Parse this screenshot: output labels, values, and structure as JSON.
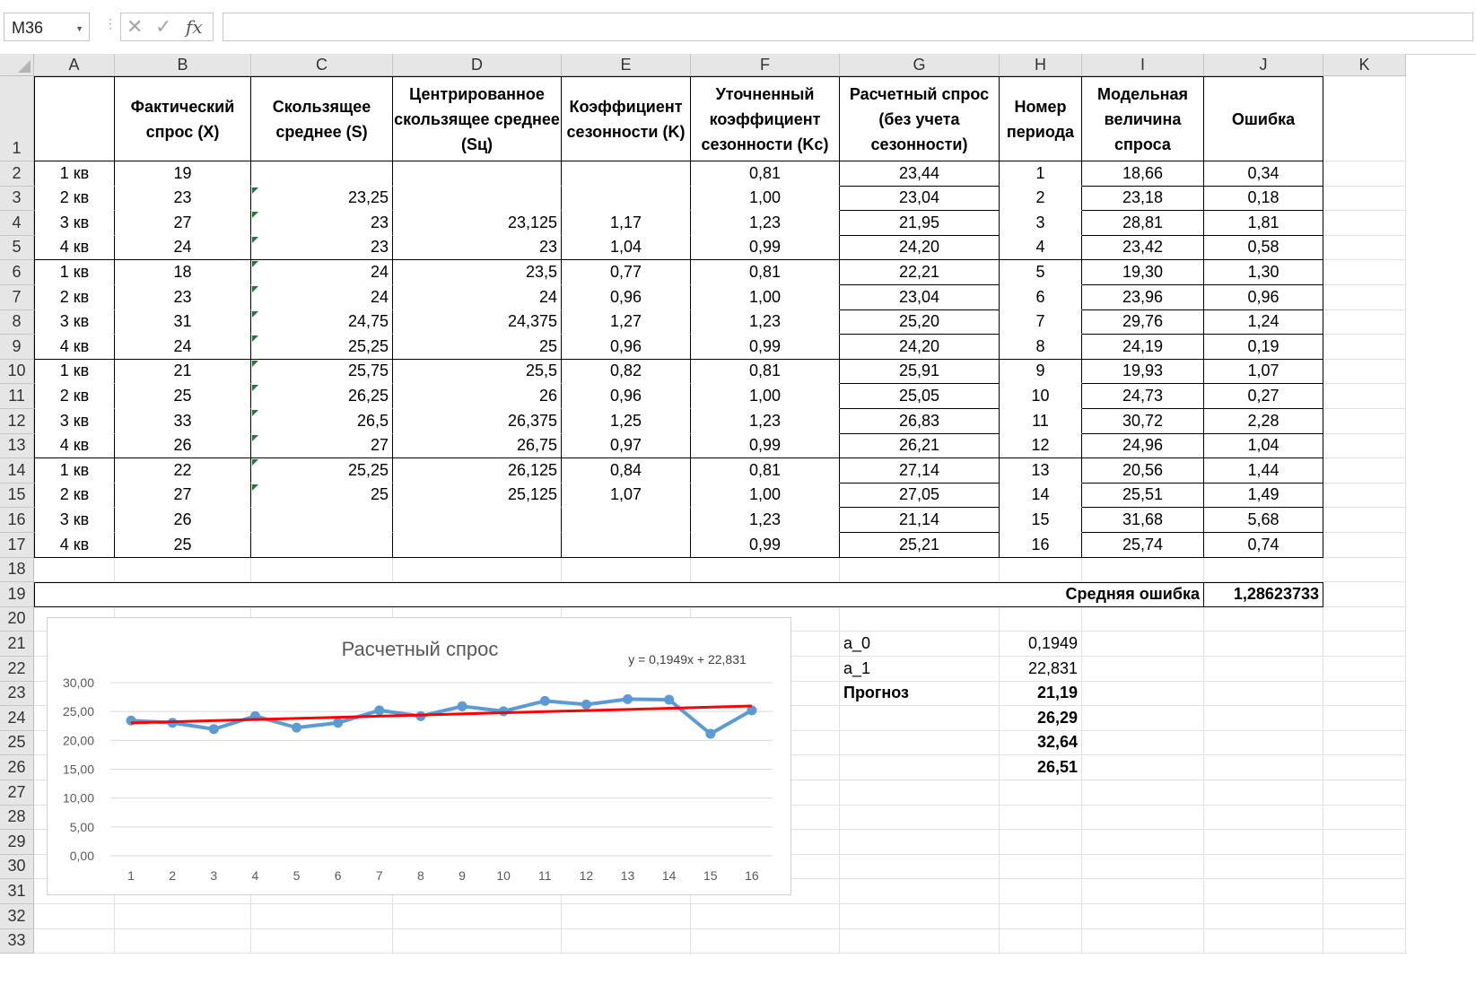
{
  "name_box": "M36",
  "formula_icons": [
    "close-icon",
    "check-icon",
    "fx-icon"
  ],
  "fx_label": "fx",
  "columns": [
    "A",
    "B",
    "C",
    "D",
    "E",
    "F",
    "G",
    "H",
    "I",
    "J",
    "K"
  ],
  "headers": {
    "B": "Фактический спрос (X)",
    "C": "Скользящее среднее (S)",
    "D": "Центрированное скользящее среднее (Sц)",
    "E": "Коэффициент сезонности (K)",
    "F": "Уточненный коэффициент сезонности (Kс)",
    "G": "Расчетный спрос (без учета сезонности)",
    "H": "Номер периода",
    "I": "Модельная величина спроса",
    "J": "Ошибка"
  },
  "rows": [
    {
      "A": "1 кв",
      "B": "19",
      "C": "",
      "D": "",
      "E": "",
      "F": "0,81",
      "G": "23,44",
      "H": "1",
      "I": "18,66",
      "J": "0,34"
    },
    {
      "A": "2 кв",
      "B": "23",
      "C": "23,25",
      "D": "",
      "E": "",
      "F": "1,00",
      "G": "23,04",
      "H": "2",
      "I": "23,18",
      "J": "0,18"
    },
    {
      "A": "3 кв",
      "B": "27",
      "C": "23",
      "D": "23,125",
      "E": "1,17",
      "F": "1,23",
      "G": "21,95",
      "H": "3",
      "I": "28,81",
      "J": "1,81"
    },
    {
      "A": "4 кв",
      "B": "24",
      "C": "23",
      "D": "23",
      "E": "1,04",
      "F": "0,99",
      "G": "24,20",
      "H": "4",
      "I": "23,42",
      "J": "0,58"
    },
    {
      "A": "1 кв",
      "B": "18",
      "C": "24",
      "D": "23,5",
      "E": "0,77",
      "F": "0,81",
      "G": "22,21",
      "H": "5",
      "I": "19,30",
      "J": "1,30"
    },
    {
      "A": "2 кв",
      "B": "23",
      "C": "24",
      "D": "24",
      "E": "0,96",
      "F": "1,00",
      "G": "23,04",
      "H": "6",
      "I": "23,96",
      "J": "0,96"
    },
    {
      "A": "3 кв",
      "B": "31",
      "C": "24,75",
      "D": "24,375",
      "E": "1,27",
      "F": "1,23",
      "G": "25,20",
      "H": "7",
      "I": "29,76",
      "J": "1,24"
    },
    {
      "A": "4 кв",
      "B": "24",
      "C": "25,25",
      "D": "25",
      "E": "0,96",
      "F": "0,99",
      "G": "24,20",
      "H": "8",
      "I": "24,19",
      "J": "0,19"
    },
    {
      "A": "1 кв",
      "B": "21",
      "C": "25,75",
      "D": "25,5",
      "E": "0,82",
      "F": "0,81",
      "G": "25,91",
      "H": "9",
      "I": "19,93",
      "J": "1,07"
    },
    {
      "A": "2 кв",
      "B": "25",
      "C": "26,25",
      "D": "26",
      "E": "0,96",
      "F": "1,00",
      "G": "25,05",
      "H": "10",
      "I": "24,73",
      "J": "0,27"
    },
    {
      "A": "3 кв",
      "B": "33",
      "C": "26,5",
      "D": "26,375",
      "E": "1,25",
      "F": "1,23",
      "G": "26,83",
      "H": "11",
      "I": "30,72",
      "J": "2,28"
    },
    {
      "A": "4 кв",
      "B": "26",
      "C": "27",
      "D": "26,75",
      "E": "0,97",
      "F": "0,99",
      "G": "26,21",
      "H": "12",
      "I": "24,96",
      "J": "1,04"
    },
    {
      "A": "1 кв",
      "B": "22",
      "C": "25,25",
      "D": "26,125",
      "E": "0,84",
      "F": "0,81",
      "G": "27,14",
      "H": "13",
      "I": "20,56",
      "J": "1,44"
    },
    {
      "A": "2 кв",
      "B": "27",
      "C": "25",
      "D": "25,125",
      "E": "1,07",
      "F": "1,00",
      "G": "27,05",
      "H": "14",
      "I": "25,51",
      "J": "1,49"
    },
    {
      "A": "3 кв",
      "B": "26",
      "C": "",
      "D": "",
      "E": "",
      "F": "1,23",
      "G": "21,14",
      "H": "15",
      "I": "31,68",
      "J": "5,68"
    },
    {
      "A": "4 кв",
      "B": "25",
      "C": "",
      "D": "",
      "E": "",
      "F": "0,99",
      "G": "25,21",
      "H": "16",
      "I": "25,74",
      "J": "0,74"
    }
  ],
  "summary": {
    "label": "Средняя ошибка",
    "value": "1,28623733"
  },
  "coefficients": [
    {
      "label": "a_0",
      "value": "0,1949"
    },
    {
      "label": "a_1",
      "value": "22,831"
    }
  ],
  "forecast": {
    "label": "Прогноз",
    "values": [
      "21,19",
      "26,29",
      "32,64",
      "26,51"
    ]
  },
  "row_numbers": [
    "1",
    "2",
    "3",
    "4",
    "5",
    "6",
    "7",
    "8",
    "9",
    "10",
    "11",
    "12",
    "13",
    "14",
    "15",
    "16",
    "17",
    "18",
    "19",
    "20",
    "21",
    "22",
    "23",
    "24",
    "25",
    "26",
    "27",
    "28",
    "29",
    "30",
    "31",
    "32",
    "33"
  ],
  "colors": {
    "series": "#5b9bd5",
    "trend": "#ff0000",
    "grid": "#d9d9d9",
    "axis_text": "#595959",
    "error_triangle": "#1e7b34"
  },
  "chart_data": {
    "type": "line",
    "title": "Расчетный спрос",
    "equation": "y = 0,1949x + 22,831",
    "x": [
      1,
      2,
      3,
      4,
      5,
      6,
      7,
      8,
      9,
      10,
      11,
      12,
      13,
      14,
      15,
      16
    ],
    "x_tick_labels": [
      "1",
      "2",
      "3",
      "4",
      "5",
      "6",
      "7",
      "8",
      "9",
      "10",
      "11",
      "12",
      "13",
      "14",
      "15",
      "16"
    ],
    "series": [
      {
        "values": [
          23.44,
          23.04,
          21.95,
          24.2,
          22.21,
          23.04,
          25.2,
          24.2,
          25.91,
          25.05,
          26.83,
          26.21,
          27.14,
          27.05,
          21.14,
          25.21
        ]
      }
    ],
    "trendline": {
      "type": "linear",
      "slope": 0.1949,
      "intercept": 22.831
    },
    "y_ticks": [
      "0,00",
      "5,00",
      "10,00",
      "15,00",
      "20,00",
      "25,00",
      "30,00"
    ],
    "ylim": [
      0,
      30
    ],
    "grid": true,
    "legend": "none"
  }
}
